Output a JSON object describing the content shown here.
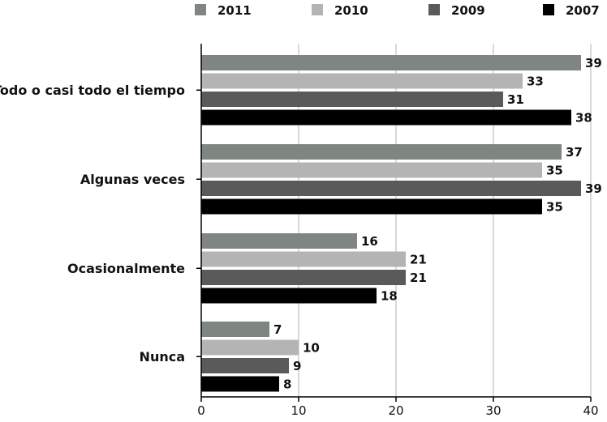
{
  "chart_data": {
    "type": "bar",
    "orientation": "horizontal",
    "categories": [
      "Todo o casi todo el tiempo",
      "Algunas veces",
      "Ocasionalmente",
      "Nunca"
    ],
    "series": [
      {
        "name": "2011",
        "color": "#7f8581",
        "values": [
          39,
          37,
          16,
          7
        ]
      },
      {
        "name": "2010",
        "color": "#b4b4b4",
        "values": [
          33,
          35,
          21,
          10
        ]
      },
      {
        "name": "2009",
        "color": "#5a5a5a",
        "values": [
          31,
          39,
          21,
          9
        ]
      },
      {
        "name": "2007",
        "color": "#000000",
        "values": [
          38,
          35,
          18,
          8
        ]
      }
    ],
    "xlim": [
      0,
      40
    ],
    "xticks": [
      0,
      10,
      20,
      30,
      40
    ],
    "grid": "vertical",
    "legend_position": "top",
    "data_labels": true
  }
}
